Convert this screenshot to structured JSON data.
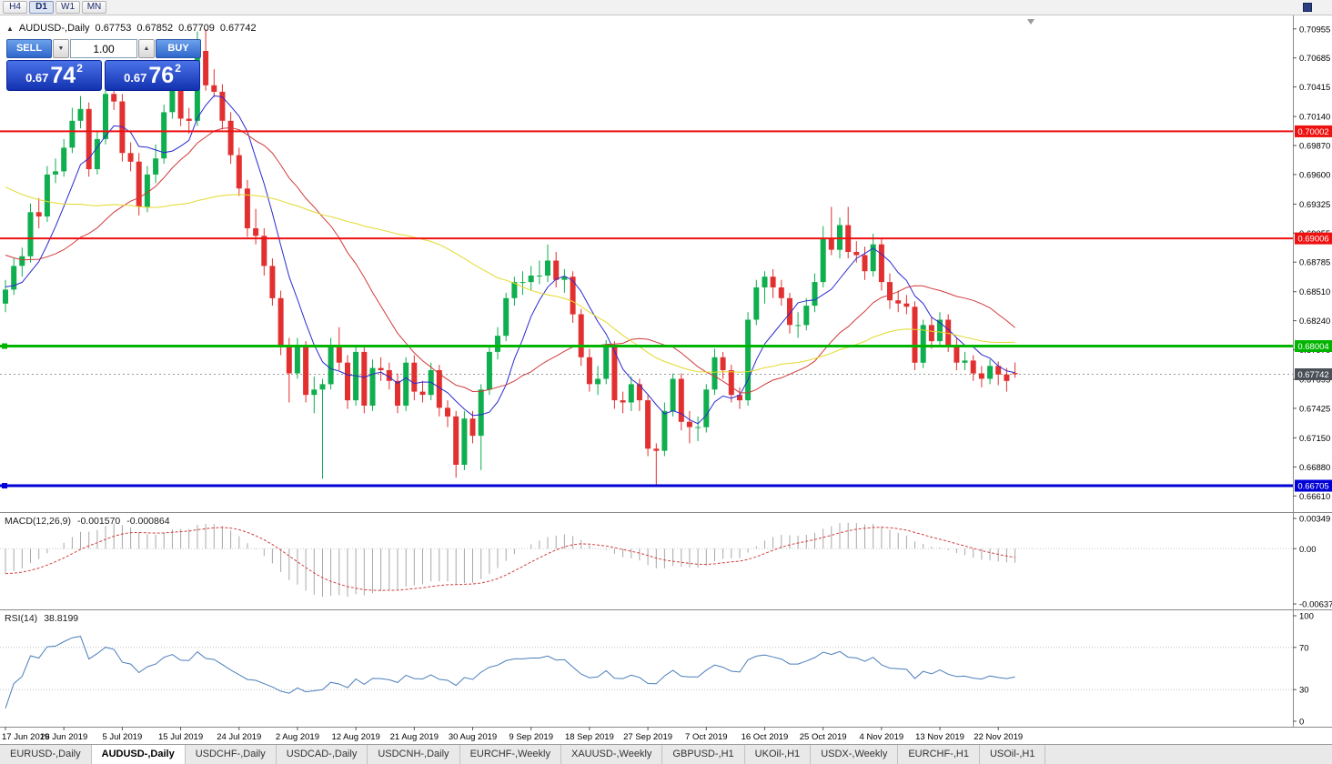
{
  "toolbar": {
    "timeframes": [
      "H4",
      "D1",
      "W1",
      "MN"
    ],
    "active_timeframe": "D1"
  },
  "icons": {
    "panel_toggle": "▲",
    "volume_down": "▼",
    "volume_up": "▲"
  },
  "chart_header": {
    "symbol": "AUDUSD-,Daily",
    "open": "0.67753",
    "high": "0.67852",
    "low": "0.67709",
    "close": "0.67742"
  },
  "trade_panel": {
    "sell_label": "SELL",
    "buy_label": "BUY",
    "volume": "1.00",
    "sell_price": {
      "prefix": "0.67",
      "big": "74",
      "sup": "2"
    },
    "buy_price": {
      "prefix": "0.67",
      "big": "76",
      "sup": "2"
    }
  },
  "price_axis": {
    "ticks": [
      "0.70955",
      "0.70685",
      "0.70415",
      "0.70140",
      "0.69870",
      "0.69600",
      "0.69325",
      "0.69055",
      "0.68785",
      "0.68510",
      "0.68240",
      "0.67970",
      "0.67695",
      "0.67425",
      "0.67150",
      "0.66880",
      "0.66610"
    ]
  },
  "macd_panel": {
    "name": "MACD(12,26,9)",
    "value_main": "-0.001570",
    "value_signal": "-0.000864",
    "axis_ticks": [
      "0.00349",
      "0.00",
      "-0.00637"
    ],
    "axis_values": [
      0.00349,
      0,
      -0.00637
    ]
  },
  "rsi_panel": {
    "name": "RSI(14)",
    "value": "38.8199",
    "axis_ticks": [
      "100",
      "70",
      "30",
      "0"
    ],
    "axis_values": [
      100,
      70,
      30,
      0
    ],
    "levels": [
      70,
      30
    ]
  },
  "bottom_tabs": [
    {
      "label": "EURUSD-,Daily",
      "active": false
    },
    {
      "label": "AUDUSD-,Daily",
      "active": true
    },
    {
      "label": "USDCHF-,Daily",
      "active": false
    },
    {
      "label": "USDCAD-,Daily",
      "active": false
    },
    {
      "label": "USDCNH-,Daily",
      "active": false
    },
    {
      "label": "EURCHF-,Weekly",
      "active": false
    },
    {
      "label": "XAUUSD-,Weekly",
      "active": false
    },
    {
      "label": "GBPUSD-,H1",
      "active": false
    },
    {
      "label": "UKOil-,H1",
      "active": false
    },
    {
      "label": "USDX-,Weekly",
      "active": false
    },
    {
      "label": "EURCHF-,H1",
      "active": false
    },
    {
      "label": "USOil-,H1",
      "active": false
    }
  ],
  "chart_data": {
    "type": "candlestick",
    "symbol": "AUDUSD",
    "period": "Daily",
    "ylim": [
      0.6646,
      0.7108
    ],
    "up_color": "#0fae4e",
    "down_color": "#e23030",
    "x_labels": [
      "17 Jun 2019",
      "26 Jun 2019",
      "5 Jul 2019",
      "15 Jul 2019",
      "24 Jul 2019",
      "2 Aug 2019",
      "12 Aug 2019",
      "21 Aug 2019",
      "30 Aug 2019",
      "9 Sep 2019",
      "18 Sep 2019",
      "27 Sep 2019",
      "7 Oct 2019",
      "16 Oct 2019",
      "25 Oct 2019",
      "4 Nov 2019",
      "13 Nov 2019",
      "22 Nov 2019"
    ],
    "label_step": 7,
    "levels": [
      {
        "value": 0.70002,
        "label": "0.70002",
        "color": "#ee1111",
        "width": 2,
        "handle": false
      },
      {
        "value": 0.69006,
        "label": "0.69006",
        "color": "#ee1111",
        "width": 2,
        "handle": false
      },
      {
        "value": 0.68004,
        "label": "0.68004",
        "color": "#00b400",
        "width": 3,
        "handle": true
      },
      {
        "value": 0.66705,
        "label": "0.66705",
        "color": "#0000d6",
        "width": 3,
        "handle": true
      }
    ],
    "current_price": {
      "value": 0.67742,
      "label": "0.67742",
      "label_bg": "#4a4f58",
      "line_color": "#999999"
    },
    "moving_averages": [
      {
        "period": 7,
        "color": "#2a2ad0"
      },
      {
        "period": 21,
        "color": "#d03a3a"
      },
      {
        "period": 50,
        "color": "#e3d92b"
      }
    ],
    "ma_warmup": {
      "from": 0.706,
      "to": 0.6845,
      "bars": 50
    },
    "macd": {
      "fast": 12,
      "slow": 26,
      "signal": 9,
      "hist_color": "#a8a8a8",
      "signal_color": "#d04040",
      "range": [
        -0.00637,
        0.00349
      ]
    },
    "rsi": {
      "period": 14,
      "color": "#4a7ebb",
      "range": [
        0,
        100
      ]
    },
    "candles": [
      [
        0.684,
        0.6862,
        0.6832,
        0.6853
      ],
      [
        0.6853,
        0.6882,
        0.6848,
        0.6875
      ],
      [
        0.6875,
        0.6892,
        0.6865,
        0.6884
      ],
      [
        0.6884,
        0.6933,
        0.6878,
        0.6925
      ],
      [
        0.6925,
        0.6938,
        0.691,
        0.6921
      ],
      [
        0.6921,
        0.6968,
        0.6916,
        0.696
      ],
      [
        0.696,
        0.6975,
        0.6952,
        0.6963
      ],
      [
        0.6963,
        0.6993,
        0.6958,
        0.6985
      ],
      [
        0.6985,
        0.7022,
        0.698,
        0.701
      ],
      [
        0.701,
        0.7033,
        0.7003,
        0.7021
      ],
      [
        0.7021,
        0.7027,
        0.6958,
        0.6965
      ],
      [
        0.6965,
        0.7,
        0.696,
        0.6993
      ],
      [
        0.6993,
        0.7042,
        0.6988,
        0.7035
      ],
      [
        0.7035,
        0.7048,
        0.702,
        0.7028
      ],
      [
        0.7028,
        0.7035,
        0.6972,
        0.698
      ],
      [
        0.698,
        0.699,
        0.6963,
        0.6972
      ],
      [
        0.6972,
        0.698,
        0.6922,
        0.693
      ],
      [
        0.693,
        0.6968,
        0.6925,
        0.696
      ],
      [
        0.696,
        0.6988,
        0.6952,
        0.6975
      ],
      [
        0.6975,
        0.7025,
        0.697,
        0.7018
      ],
      [
        0.7018,
        0.7048,
        0.7012,
        0.7038
      ],
      [
        0.7038,
        0.7045,
        0.7005,
        0.7012
      ],
      [
        0.7012,
        0.7022,
        0.6998,
        0.701
      ],
      [
        0.701,
        0.7093,
        0.7005,
        0.7075
      ],
      [
        0.7075,
        0.7095,
        0.7038,
        0.7043
      ],
      [
        0.7043,
        0.7058,
        0.7032,
        0.7037
      ],
      [
        0.7037,
        0.7044,
        0.7002,
        0.701
      ],
      [
        0.701,
        0.7018,
        0.697,
        0.6978
      ],
      [
        0.6978,
        0.6985,
        0.694,
        0.6947
      ],
      [
        0.6947,
        0.6955,
        0.6902,
        0.691
      ],
      [
        0.691,
        0.6928,
        0.6895,
        0.6903
      ],
      [
        0.6903,
        0.691,
        0.6866,
        0.6875
      ],
      [
        0.6875,
        0.6882,
        0.6838,
        0.6845
      ],
      [
        0.6845,
        0.6852,
        0.6792,
        0.68
      ],
      [
        0.68,
        0.6808,
        0.6748,
        0.6775
      ],
      [
        0.6775,
        0.6808,
        0.677,
        0.68
      ],
      [
        0.68,
        0.6805,
        0.6748,
        0.6755
      ],
      [
        0.6755,
        0.6772,
        0.6738,
        0.676
      ],
      [
        0.676,
        0.677,
        0.6677,
        0.6765
      ],
      [
        0.6765,
        0.6808,
        0.676,
        0.68
      ],
      [
        0.68,
        0.6818,
        0.6778,
        0.6785
      ],
      [
        0.6785,
        0.6792,
        0.6742,
        0.675
      ],
      [
        0.675,
        0.68,
        0.6745,
        0.6795
      ],
      [
        0.6795,
        0.68,
        0.6738,
        0.6745
      ],
      [
        0.6745,
        0.6788,
        0.674,
        0.678
      ],
      [
        0.678,
        0.679,
        0.6768,
        0.6778
      ],
      [
        0.6778,
        0.6785,
        0.676,
        0.6768
      ],
      [
        0.6768,
        0.6775,
        0.6738,
        0.6745
      ],
      [
        0.6745,
        0.679,
        0.674,
        0.6785
      ],
      [
        0.6785,
        0.6792,
        0.675,
        0.6758
      ],
      [
        0.6758,
        0.6768,
        0.6748,
        0.6755
      ],
      [
        0.6755,
        0.6785,
        0.675,
        0.6778
      ],
      [
        0.6778,
        0.6783,
        0.6735,
        0.6743
      ],
      [
        0.6743,
        0.675,
        0.6725,
        0.6735
      ],
      [
        0.6735,
        0.674,
        0.6678,
        0.669
      ],
      [
        0.669,
        0.674,
        0.6685,
        0.6733
      ],
      [
        0.6733,
        0.674,
        0.671,
        0.6717
      ],
      [
        0.6717,
        0.6765,
        0.6685,
        0.676
      ],
      [
        0.676,
        0.68,
        0.6755,
        0.6795
      ],
      [
        0.6795,
        0.6818,
        0.6788,
        0.681
      ],
      [
        0.681,
        0.685,
        0.6805,
        0.6845
      ],
      [
        0.6845,
        0.6865,
        0.6838,
        0.686
      ],
      [
        0.686,
        0.687,
        0.6848,
        0.686
      ],
      [
        0.686,
        0.6875,
        0.6852,
        0.6866
      ],
      [
        0.6866,
        0.688,
        0.6858,
        0.6866
      ],
      [
        0.6866,
        0.6895,
        0.686,
        0.688
      ],
      [
        0.688,
        0.6888,
        0.6855,
        0.6862
      ],
      [
        0.6862,
        0.6872,
        0.685,
        0.6865
      ],
      [
        0.6865,
        0.687,
        0.6822,
        0.683
      ],
      [
        0.683,
        0.6835,
        0.6782,
        0.679
      ],
      [
        0.679,
        0.6798,
        0.6758,
        0.6765
      ],
      [
        0.6765,
        0.6782,
        0.6755,
        0.677
      ],
      [
        0.677,
        0.6806,
        0.6765,
        0.68
      ],
      [
        0.68,
        0.6805,
        0.6742,
        0.675
      ],
      [
        0.675,
        0.6758,
        0.6738,
        0.6748
      ],
      [
        0.6748,
        0.6772,
        0.674,
        0.6765
      ],
      [
        0.6765,
        0.677,
        0.674,
        0.675
      ],
      [
        0.675,
        0.6755,
        0.6698,
        0.6705
      ],
      [
        0.6705,
        0.671,
        0.6671,
        0.6703
      ],
      [
        0.6703,
        0.6748,
        0.6698,
        0.674
      ],
      [
        0.674,
        0.6775,
        0.6735,
        0.677
      ],
      [
        0.677,
        0.6775,
        0.6722,
        0.673
      ],
      [
        0.673,
        0.674,
        0.671,
        0.6725
      ],
      [
        0.6725,
        0.6735,
        0.6712,
        0.6725
      ],
      [
        0.6725,
        0.6765,
        0.672,
        0.676
      ],
      [
        0.676,
        0.6798,
        0.6755,
        0.679
      ],
      [
        0.679,
        0.6795,
        0.677,
        0.6778
      ],
      [
        0.6778,
        0.6783,
        0.6748,
        0.6755
      ],
      [
        0.6755,
        0.6762,
        0.6742,
        0.675
      ],
      [
        0.675,
        0.6832,
        0.6745,
        0.6825
      ],
      [
        0.6825,
        0.6862,
        0.682,
        0.6855
      ],
      [
        0.6855,
        0.687,
        0.684,
        0.6865
      ],
      [
        0.6865,
        0.6872,
        0.6845,
        0.6855
      ],
      [
        0.6855,
        0.6862,
        0.6838,
        0.6845
      ],
      [
        0.6845,
        0.685,
        0.6812,
        0.682
      ],
      [
        0.682,
        0.6832,
        0.6808,
        0.682
      ],
      [
        0.682,
        0.6845,
        0.6815,
        0.6838
      ],
      [
        0.6838,
        0.6868,
        0.6832,
        0.686
      ],
      [
        0.686,
        0.6912,
        0.6855,
        0.69
      ],
      [
        0.69,
        0.693,
        0.6885,
        0.689
      ],
      [
        0.689,
        0.692,
        0.6882,
        0.6913
      ],
      [
        0.6913,
        0.693,
        0.6882,
        0.6888
      ],
      [
        0.6888,
        0.6898,
        0.6878,
        0.6885
      ],
      [
        0.6885,
        0.6893,
        0.6862,
        0.687
      ],
      [
        0.687,
        0.6905,
        0.6865,
        0.6895
      ],
      [
        0.6895,
        0.69,
        0.6852,
        0.686
      ],
      [
        0.686,
        0.6868,
        0.6835,
        0.6843
      ],
      [
        0.6843,
        0.6852,
        0.6832,
        0.684
      ],
      [
        0.684,
        0.6848,
        0.683,
        0.6837
      ],
      [
        0.6837,
        0.6842,
        0.6778,
        0.6785
      ],
      [
        0.6785,
        0.6825,
        0.678,
        0.682
      ],
      [
        0.682,
        0.6828,
        0.6798,
        0.6805
      ],
      [
        0.6805,
        0.6832,
        0.68,
        0.6825
      ],
      [
        0.6825,
        0.683,
        0.6795,
        0.68
      ],
      [
        0.68,
        0.6808,
        0.6778,
        0.6785
      ],
      [
        0.6785,
        0.6795,
        0.6778,
        0.6787
      ],
      [
        0.6787,
        0.6792,
        0.6768,
        0.6775
      ],
      [
        0.6775,
        0.6782,
        0.6762,
        0.677
      ],
      [
        0.677,
        0.6788,
        0.6765,
        0.6782
      ],
      [
        0.6782,
        0.6786,
        0.6764,
        0.6774
      ],
      [
        0.6774,
        0.678,
        0.6758,
        0.6768
      ],
      [
        0.67753,
        0.67852,
        0.67709,
        0.67742
      ]
    ]
  }
}
